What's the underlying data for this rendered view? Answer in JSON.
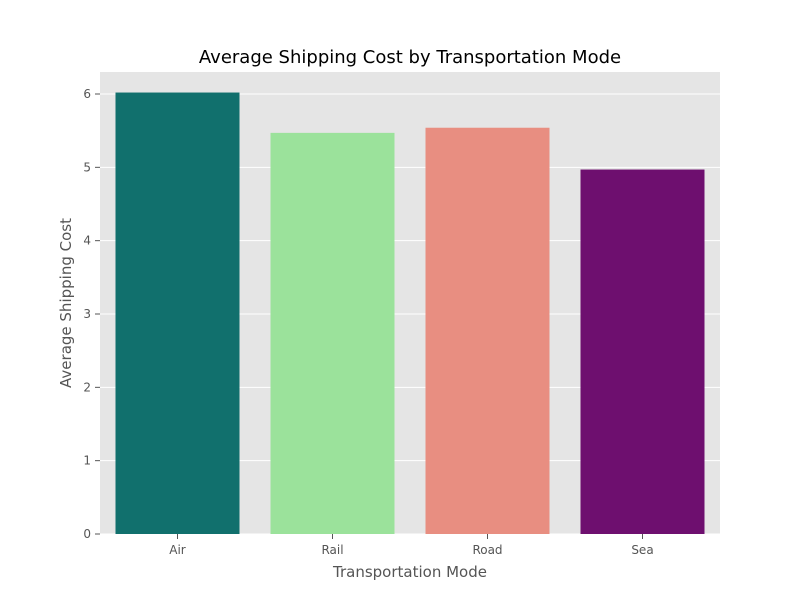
{
  "chart_data": {
    "type": "bar",
    "title": "Average Shipping Cost by Transportation Mode",
    "xlabel": "Transportation Mode",
    "ylabel": "Average Shipping Cost",
    "categories": [
      "Air",
      "Rail",
      "Road",
      "Sea"
    ],
    "values": [
      6.02,
      5.47,
      5.54,
      4.97
    ],
    "colors": [
      "#11706d",
      "#9be29b",
      "#e88e81",
      "#6e0f6f"
    ],
    "ylim": [
      0,
      6.3
    ],
    "yticks": [
      "0",
      "1",
      "2",
      "3",
      "4",
      "5",
      "6"
    ],
    "grid": true,
    "background_color": "#e5e5e5"
  }
}
